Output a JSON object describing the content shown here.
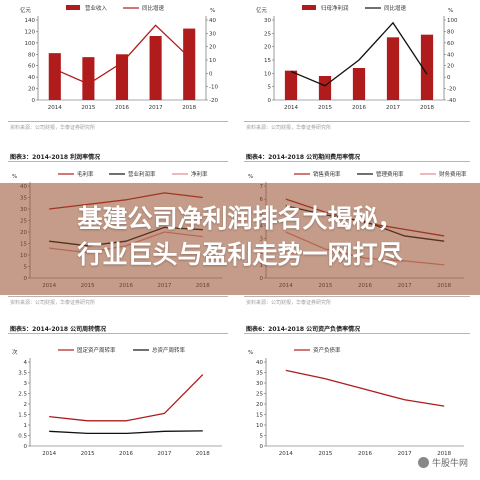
{
  "overlay": {
    "line1": "基建公司净利润排名大揭秘，",
    "line2": "行业巨头与盈利走势一网打尽"
  },
  "watermark": "牛股牛网",
  "panels": [
    {
      "title": "",
      "source": "资料来源：公司财报，华泰证券研究所",
      "chart_data": {
        "type": "bar",
        "categories": [
          "2014",
          "2015",
          "2016",
          "2017",
          "2018"
        ],
        "ylabel": "亿元",
        "ylim": [
          0,
          140
        ],
        "yticks": [
          0,
          20,
          40,
          60,
          80,
          100,
          120,
          140
        ],
        "y2lim": [
          -20,
          40
        ],
        "y2ticks": [
          -20,
          -10,
          0,
          10,
          20,
          30,
          40
        ],
        "y2label": "%",
        "series": [
          {
            "name": "营业收入",
            "kind": "bar",
            "axis": "left",
            "values": [
              82,
              75,
              80,
              112,
              125
            ]
          },
          {
            "name": "同比增速",
            "kind": "line",
            "axis": "right",
            "values": [
              3,
              -8,
              8,
              36,
              12
            ]
          }
        ]
      }
    },
    {
      "title": "",
      "source": "资料来源：公司财报，华泰证券研究所",
      "chart_data": {
        "type": "bar",
        "categories": [
          "2014",
          "2015",
          "2016",
          "2017",
          "2018"
        ],
        "ylabel": "亿元",
        "ylim": [
          0,
          30
        ],
        "yticks": [
          0,
          5,
          10,
          15,
          20,
          25,
          30
        ],
        "y2lim": [
          -40,
          100
        ],
        "y2ticks": [
          -40,
          -20,
          0,
          20,
          40,
          60,
          80,
          100
        ],
        "y2label": "%",
        "series": [
          {
            "name": "归母净利润",
            "kind": "bar",
            "axis": "left",
            "values": [
              11,
              9,
              12,
              23.5,
              24.5
            ]
          },
          {
            "name": "同比增速",
            "kind": "line",
            "axis": "right",
            "values": [
              10,
              -15,
              30,
              95,
              5
            ]
          }
        ]
      }
    },
    {
      "title": "图表3：2014-2018 利润率情况",
      "source": "资料来源：公司财报，华泰证券研究所",
      "chart_data": {
        "type": "line",
        "categories": [
          "2014",
          "2015",
          "2016",
          "2017",
          "2018"
        ],
        "ylabel": "%",
        "ylim": [
          0,
          40
        ],
        "yticks": [
          0,
          5,
          10,
          15,
          20,
          25,
          30,
          35,
          40
        ],
        "series": [
          {
            "name": "毛利率",
            "values": [
              30,
              32,
              34,
              37,
              35
            ]
          },
          {
            "name": "营业利润率",
            "values": [
              16,
              14,
              16,
              22,
              21
            ]
          },
          {
            "name": "净利率",
            "values": [
              13,
              11,
              14,
              20,
              18
            ]
          }
        ]
      }
    },
    {
      "title": "图表4：2014-2018 公司期间费用率情况",
      "source": "资料来源：公司财报，华泰证券研究所",
      "chart_data": {
        "type": "line",
        "categories": [
          "2014",
          "2015",
          "2016",
          "2017",
          "2018"
        ],
        "ylabel": "%",
        "ylim": [
          0,
          7
        ],
        "yticks": [
          0,
          1,
          2,
          3,
          4,
          5,
          6,
          7
        ],
        "series": [
          {
            "name": "销售费用率",
            "values": [
              6,
              5,
              4.2,
              3.7,
              3.2
            ]
          },
          {
            "name": "管理费用率",
            "values": [
              5.5,
              4.8,
              4.3,
              3.2,
              2.8
            ]
          },
          {
            "name": "财务费用率",
            "values": [
              3.5,
              2.2,
              1.5,
              1.3,
              1.0
            ]
          }
        ]
      }
    },
    {
      "title": "图表5：2014-2018 公司周转情况",
      "source": "资料来源：公司财报，华泰证券研究所",
      "chart_data": {
        "type": "line",
        "categories": [
          "2014",
          "2015",
          "2016",
          "2017",
          "2018"
        ],
        "ylabel": "次",
        "ylim": [
          0,
          4
        ],
        "yticks": [
          0,
          0.5,
          1,
          1.5,
          2,
          2.5,
          3,
          3.5,
          4
        ],
        "series": [
          {
            "name": "固定资产周转率",
            "values": [
              1.4,
              1.2,
              1.2,
              1.55,
              3.4
            ]
          },
          {
            "name": "总资产周转率",
            "values": [
              0.7,
              0.6,
              0.6,
              0.7,
              0.72
            ]
          }
        ]
      }
    },
    {
      "title": "图表6：2014-2018 公司资产负债率情况",
      "source": "资料来源：公司财报，华泰证券研究所",
      "chart_data": {
        "type": "line",
        "categories": [
          "2014",
          "2015",
          "2016",
          "2017",
          "2018"
        ],
        "ylabel": "%",
        "ylim": [
          0,
          40
        ],
        "yticks": [
          0,
          5,
          10,
          15,
          20,
          25,
          30,
          35,
          40
        ],
        "series": [
          {
            "name": "资产负债率",
            "values": [
              36,
              32,
              27,
              22,
              19
            ]
          }
        ]
      }
    }
  ]
}
